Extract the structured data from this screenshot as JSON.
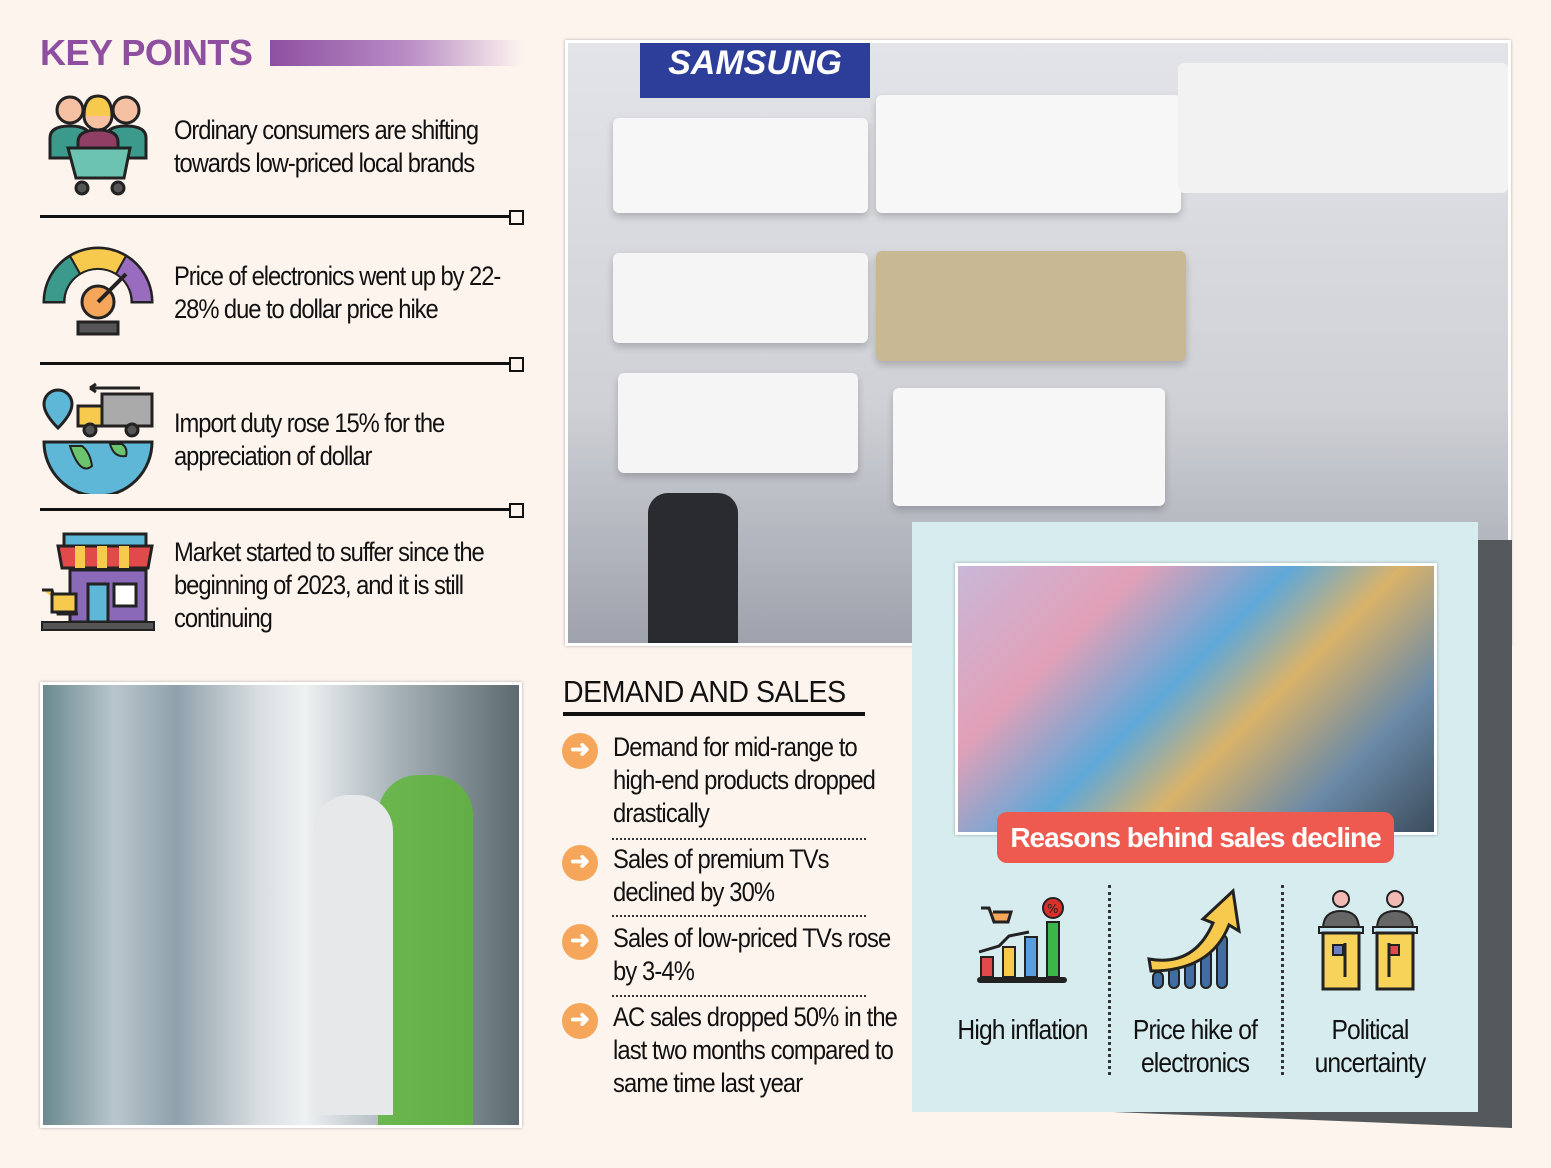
{
  "key_points": {
    "title": "KEY POINTS",
    "items": [
      {
        "icon": "consumers-cart-icon",
        "text": "Ordinary consumers are shifting towards low-priced local brands"
      },
      {
        "icon": "price-gauge-icon",
        "text": "Price of electronics went up by 22-28% due to dollar price hike"
      },
      {
        "icon": "import-globe-truck-icon",
        "text": "Import duty rose 15% for the appreciation of dollar"
      },
      {
        "icon": "market-shop-icon",
        "text": "Market started to suffer since the beginning of 2023, and it is still continuing"
      }
    ]
  },
  "demand_and_sales": {
    "title": "DEMAND AND SALES",
    "items": [
      "Demand for mid-range to high-end products dropped drastically",
      "Sales of premium TVs declined by 30%",
      "Sales of low-priced TVs rose by 3-4%",
      "AC sales dropped 50% in the last two months compared to same time last year"
    ]
  },
  "reasons": {
    "title": "Reasons behind sales decline",
    "items": [
      {
        "icon": "inflation-chart-icon",
        "label": "High inflation"
      },
      {
        "icon": "price-rise-arrow-icon",
        "label": "Price hike of electronics"
      },
      {
        "icon": "politicians-podium-icon",
        "label": "Political uncertainty"
      }
    ]
  },
  "photos": {
    "air_conditioners_brand_sign": "SAMSUNG"
  },
  "colors": {
    "accent_purple": "#8e4fa0",
    "banner_red": "#ee5a4f",
    "arrow_orange": "#f5a65b",
    "panel_bg": "#d6ecef",
    "page_bg": "#fdf4ee"
  }
}
